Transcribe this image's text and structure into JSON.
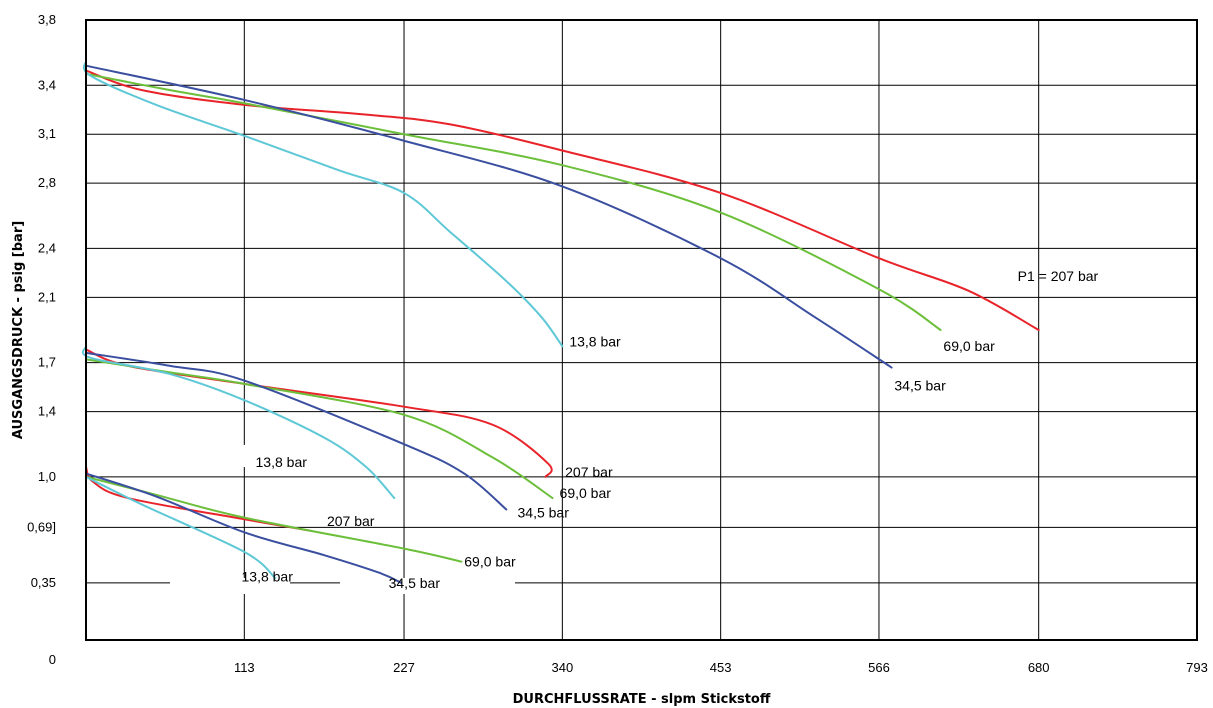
{
  "chart_data": {
    "type": "line",
    "title": "",
    "xlabel": "DURCHFLUSSRATE - slpm Stickstoff",
    "ylabel": "AUSGANGSDRUCK - psig [bar]",
    "xlim": [
      0,
      793
    ],
    "ylim": [
      0,
      3.8
    ],
    "grid": true,
    "x_ticks": [
      113,
      227,
      340,
      453,
      566,
      680,
      793
    ],
    "x_tick_labels": [
      "113",
      "227",
      "340",
      "453",
      "566",
      "680",
      "793"
    ],
    "y_ticks": [
      0.35,
      0.69,
      1.0,
      1.4,
      1.7,
      2.1,
      2.4,
      2.8,
      3.1,
      3.4,
      3.8
    ],
    "y_tick_labels": [
      "0,35",
      "0,69]",
      "1,0",
      "1,4",
      "1,7",
      "2,1",
      "2,4",
      "2,8",
      "3,1",
      "3,4",
      "3,8"
    ],
    "origin_label": "0",
    "colors": {
      "207 bar": "#e8232a",
      "69,0 bar": "#6cbf3a",
      "34,5 bar": "#3b4fa0",
      "13,8 bar": "#5ec8d6"
    },
    "series": [
      {
        "group": 1,
        "inlet": "207 bar",
        "color": "#e8232a",
        "label": "P1 = 207 bar",
        "points": [
          [
            0,
            3.49
          ],
          [
            40,
            3.37
          ],
          [
            113,
            3.28
          ],
          [
            200,
            3.22
          ],
          [
            260,
            3.16
          ],
          [
            340,
            3.0
          ],
          [
            453,
            2.74
          ],
          [
            566,
            2.34
          ],
          [
            630,
            2.14
          ],
          [
            680,
            1.9
          ]
        ]
      },
      {
        "group": 1,
        "inlet": "69,0 bar",
        "color": "#6cbf3a",
        "label": "69,0 bar",
        "points": [
          [
            0,
            3.47
          ],
          [
            60,
            3.37
          ],
          [
            113,
            3.29
          ],
          [
            227,
            3.1
          ],
          [
            340,
            2.91
          ],
          [
            453,
            2.62
          ],
          [
            566,
            2.15
          ],
          [
            610,
            1.9
          ]
        ]
      },
      {
        "group": 1,
        "inlet": "34,5 bar",
        "color": "#3b4fa0",
        "label": "34,5 bar",
        "points": [
          [
            0,
            3.52
          ],
          [
            113,
            3.31
          ],
          [
            227,
            3.06
          ],
          [
            340,
            2.78
          ],
          [
            453,
            2.34
          ],
          [
            520,
            1.98
          ],
          [
            575,
            1.67
          ]
        ]
      },
      {
        "group": 1,
        "inlet": "13,8 bar",
        "color": "#5ec8d6",
        "label": "13,8 bar",
        "points": [
          [
            0,
            3.55
          ],
          [
            3,
            3.46
          ],
          [
            50,
            3.28
          ],
          [
            113,
            3.09
          ],
          [
            180,
            2.88
          ],
          [
            227,
            2.74
          ],
          [
            260,
            2.5
          ],
          [
            300,
            2.2
          ],
          [
            325,
            1.98
          ],
          [
            340,
            1.8
          ]
        ]
      },
      {
        "group": 2,
        "inlet": "207 bar",
        "color": "#e8232a",
        "label": "207 bar",
        "points": [
          [
            0,
            1.78
          ],
          [
            30,
            1.68
          ],
          [
            113,
            1.57
          ],
          [
            227,
            1.43
          ],
          [
            290,
            1.32
          ],
          [
            330,
            1.08
          ],
          [
            328,
            1.0
          ]
        ]
      },
      {
        "group": 2,
        "inlet": "69,0 bar",
        "color": "#6cbf3a",
        "label": "69,0 bar",
        "points": [
          [
            0,
            1.72
          ],
          [
            60,
            1.64
          ],
          [
            113,
            1.57
          ],
          [
            227,
            1.38
          ],
          [
            290,
            1.12
          ],
          [
            333,
            0.87
          ]
        ]
      },
      {
        "group": 2,
        "inlet": "34,5 bar",
        "color": "#3b4fa0",
        "label": "34,5 bar",
        "points": [
          [
            0,
            1.76
          ],
          [
            60,
            1.68
          ],
          [
            113,
            1.59
          ],
          [
            227,
            1.2
          ],
          [
            270,
            1.02
          ],
          [
            300,
            0.8
          ]
        ]
      },
      {
        "group": 2,
        "inlet": "13,8 bar",
        "color": "#5ec8d6",
        "label": "13,8 bar",
        "points": [
          [
            0,
            1.8
          ],
          [
            3,
            1.73
          ],
          [
            60,
            1.63
          ],
          [
            113,
            1.47
          ],
          [
            170,
            1.24
          ],
          [
            200,
            1.06
          ],
          [
            220,
            0.87
          ]
        ]
      },
      {
        "group": 3,
        "inlet": "207 bar",
        "color": "#e8232a",
        "label": "207 bar",
        "points": [
          [
            0,
            1.06
          ],
          [
            5,
            0.97
          ],
          [
            30,
            0.87
          ],
          [
            113,
            0.74
          ],
          [
            160,
            0.67
          ]
        ]
      },
      {
        "group": 3,
        "inlet": "69,0 bar",
        "color": "#6cbf3a",
        "label": "69,0 bar",
        "points": [
          [
            0,
            1.0
          ],
          [
            50,
            0.89
          ],
          [
            113,
            0.75
          ],
          [
            227,
            0.56
          ],
          [
            268,
            0.48
          ]
        ]
      },
      {
        "group": 3,
        "inlet": "34,5 bar",
        "color": "#3b4fa0",
        "label": "34,5 bar",
        "points": [
          [
            0,
            1.02
          ],
          [
            50,
            0.88
          ],
          [
            113,
            0.66
          ],
          [
            170,
            0.52
          ],
          [
            210,
            0.41
          ],
          [
            225,
            0.35
          ]
        ]
      },
      {
        "group": 3,
        "inlet": "13,8 bar",
        "color": "#5ec8d6",
        "label": "13,8 bar",
        "points": [
          [
            0,
            1.0
          ],
          [
            40,
            0.83
          ],
          [
            113,
            0.54
          ],
          [
            135,
            0.38
          ]
        ]
      }
    ],
    "annotations": [
      {
        "text": "P1 = 207 bar",
        "x": 665,
        "y": 2.2
      },
      {
        "text": "69,0 bar",
        "x": 612,
        "y": 1.77
      },
      {
        "text": "34,5 bar",
        "x": 577,
        "y": 1.53
      },
      {
        "text": "13,8 bar",
        "x": 345,
        "y": 1.8
      },
      {
        "text": "207 bar",
        "x": 342,
        "y": 1.0
      },
      {
        "text": "69,0 bar",
        "x": 338,
        "y": 0.87
      },
      {
        "text": "34,5 bar",
        "x": 308,
        "y": 0.75
      },
      {
        "text": "13,8 bar",
        "x": 121,
        "y": 1.06
      },
      {
        "text": "207 bar",
        "x": 172,
        "y": 0.7
      },
      {
        "text": "69,0 bar",
        "x": 270,
        "y": 0.45
      },
      {
        "text": "34,5 bar",
        "x": 216,
        "y": 0.32
      },
      {
        "text": "13,8 bar",
        "x": 111,
        "y": 0.36
      }
    ]
  }
}
